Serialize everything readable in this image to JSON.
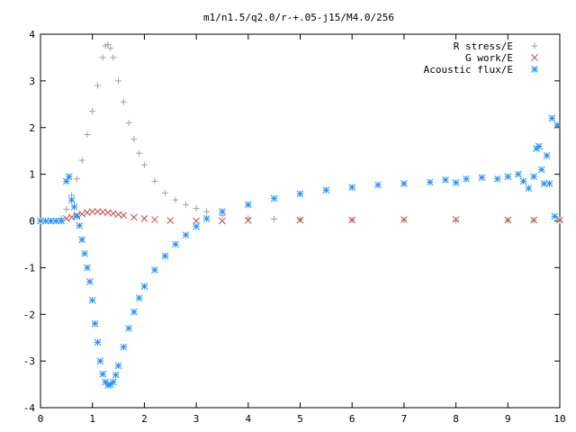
{
  "chart_data": {
    "type": "scatter",
    "title": "m1/n1.5/q2.0/r-+.05-j15/M4.0/256",
    "xlabel": "",
    "ylabel": "",
    "xlim": [
      0,
      10
    ],
    "ylim": [
      -4,
      4
    ],
    "x_ticks": [
      "0",
      "1",
      "2",
      "3",
      "4",
      "5",
      "6",
      "7",
      "8",
      "9",
      "10"
    ],
    "y_ticks": [
      "-4",
      "-3",
      "-2",
      "-1",
      "0",
      "1",
      "2",
      "3",
      "4"
    ],
    "grid": false,
    "legend_position": "top-right",
    "series": [
      {
        "name": "R stress/E",
        "marker": "plus",
        "color": "#a0a0a0",
        "x": [
          0,
          0.2,
          0.4,
          0.5,
          0.6,
          0.7,
          0.8,
          0.9,
          1.0,
          1.1,
          1.2,
          1.25,
          1.3,
          1.35,
          1.4,
          1.5,
          1.6,
          1.7,
          1.8,
          1.9,
          2.0,
          2.2,
          2.4,
          2.6,
          2.8,
          3.0,
          3.2,
          3.5,
          4.0,
          4.5,
          5.0,
          6.0,
          7.0,
          8.0,
          9.0,
          9.5,
          10.0
        ],
        "y": [
          0.0,
          0.0,
          0.05,
          0.25,
          0.55,
          0.9,
          1.3,
          1.85,
          2.35,
          2.9,
          3.5,
          3.75,
          3.78,
          3.7,
          3.5,
          3.0,
          2.55,
          2.1,
          1.75,
          1.45,
          1.2,
          0.85,
          0.6,
          0.45,
          0.35,
          0.27,
          0.2,
          0.12,
          0.06,
          0.04,
          0.03,
          0.02,
          0.02,
          0.01,
          0.01,
          0.01,
          0.01
        ]
      },
      {
        "name": "G work/E",
        "marker": "cross",
        "color": "#c0504d",
        "x": [
          0.5,
          0.6,
          0.7,
          0.8,
          0.9,
          1.0,
          1.1,
          1.2,
          1.3,
          1.4,
          1.5,
          1.6,
          1.8,
          2.0,
          2.2,
          2.5,
          3.0,
          3.5,
          4.0,
          5.0,
          6.0,
          7.0,
          8.0,
          9.0,
          9.5,
          10.0
        ],
        "y": [
          0.05,
          0.08,
          0.12,
          0.15,
          0.18,
          0.2,
          0.2,
          0.19,
          0.18,
          0.16,
          0.14,
          0.12,
          0.08,
          0.05,
          0.03,
          0.01,
          0.0,
          0.0,
          0.01,
          0.02,
          0.02,
          0.03,
          0.03,
          0.02,
          0.02,
          0.02
        ]
      },
      {
        "name": "Acoustic flux/E",
        "marker": "star",
        "color": "#1f8fff",
        "x": [
          0,
          0.1,
          0.2,
          0.3,
          0.4,
          0.5,
          0.55,
          0.6,
          0.65,
          0.7,
          0.75,
          0.8,
          0.85,
          0.9,
          0.95,
          1.0,
          1.05,
          1.1,
          1.15,
          1.2,
          1.25,
          1.3,
          1.35,
          1.4,
          1.45,
          1.5,
          1.6,
          1.7,
          1.8,
          1.9,
          2.0,
          2.2,
          2.4,
          2.6,
          2.8,
          3.0,
          3.2,
          3.5,
          4.0,
          4.5,
          5.0,
          5.5,
          6.0,
          6.5,
          7.0,
          7.5,
          7.8,
          8.0,
          8.2,
          8.5,
          8.8,
          9.0,
          9.2,
          9.3,
          9.4,
          9.5,
          9.55,
          9.6,
          9.65,
          9.7,
          9.75,
          9.8,
          9.85,
          9.9,
          9.95
        ],
        "y": [
          0.0,
          0.0,
          0.0,
          0.0,
          0.0,
          0.85,
          0.95,
          0.45,
          0.3,
          0.1,
          -0.1,
          -0.4,
          -0.7,
          -1.0,
          -1.3,
          -1.7,
          -2.2,
          -2.6,
          -3.0,
          -3.28,
          -3.45,
          -3.52,
          -3.5,
          -3.45,
          -3.3,
          -3.1,
          -2.7,
          -2.3,
          -1.95,
          -1.65,
          -1.4,
          -1.05,
          -0.75,
          -0.5,
          -0.3,
          -0.12,
          0.05,
          0.2,
          0.35,
          0.48,
          0.58,
          0.66,
          0.72,
          0.77,
          0.8,
          0.83,
          0.88,
          0.82,
          0.9,
          0.93,
          0.9,
          0.95,
          1.0,
          0.85,
          0.7,
          0.95,
          1.55,
          1.6,
          1.1,
          0.8,
          1.4,
          0.8,
          2.2,
          0.1,
          2.05
        ]
      }
    ]
  }
}
